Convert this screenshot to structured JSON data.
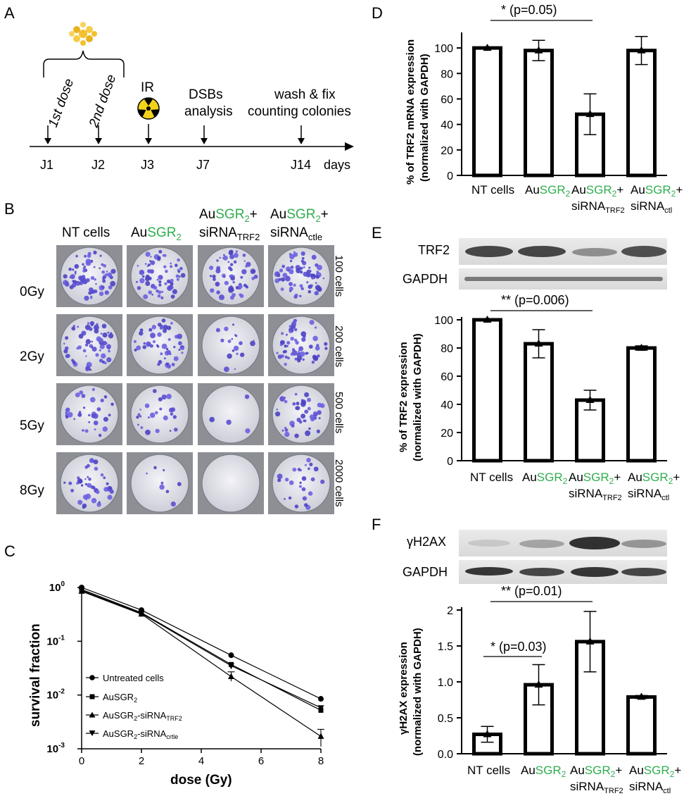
{
  "colors": {
    "accent_green": "#2fae4e",
    "dish_purple": "#5b4fd3",
    "ink": "#000000"
  },
  "panel_letters": {
    "a": "A",
    "b": "B",
    "c": "C",
    "d": "D",
    "e": "E",
    "f": "F"
  },
  "timeline": {
    "days": [
      "J1",
      "J2",
      "J3",
      "J7",
      "J14"
    ],
    "axis_unit": "days",
    "events": {
      "first_dose": "1st dose",
      "second_dose": "2nd dose",
      "ir": "IR",
      "dsb_line1": "DSBs",
      "dsb_line2": "analysis",
      "wash_line1": "wash & fix",
      "wash_line2": "counting colonies"
    }
  },
  "labels": {
    "nt": "NT cells",
    "au": "Au",
    "sgr": "SGR",
    "sub2": "2",
    "plus": "+",
    "sirna": "siRNA",
    "trf2_sub": "TRF2",
    "ctle_sub": "ctle",
    "ctl_sub": "ctl"
  },
  "colony_panel": {
    "doses": [
      "0Gy",
      "2Gy",
      "5Gy",
      "8Gy"
    ],
    "cell_counts": [
      "100 cells",
      "200 cells",
      "500 cells",
      "2000 cells"
    ]
  },
  "survival_legend": {
    "untreated": "Untreated cells",
    "prefix": "AuSGR",
    "sub2": "2",
    "trf2_suffix": "-siRNA",
    "trf2_sub": "TRF2",
    "crtle_sub": "crtle"
  },
  "blot_labels": {
    "trf2": "TRF2",
    "gapdh": "GAPDH",
    "h2ax": "γH2AX"
  },
  "chart_data": [
    {
      "id": "C",
      "type": "line",
      "xlabel": "dose (Gy)",
      "ylabel": "survival fraction",
      "yscale": "log",
      "ylim": [
        0.001,
        1
      ],
      "xlim": [
        0,
        8
      ],
      "x_ticks": [
        "0",
        "2",
        "4",
        "6",
        "8"
      ],
      "y_ticks": [
        {
          "base": "10",
          "exp": "0"
        },
        {
          "base": "10",
          "exp": "-1"
        },
        {
          "base": "10",
          "exp": "-2"
        },
        {
          "base": "10",
          "exp": "-3"
        }
      ],
      "x": [
        0,
        2,
        5,
        8
      ],
      "series": [
        {
          "name": "Untreated cells",
          "values": [
            1.0,
            0.38,
            0.055,
            0.0085
          ]
        },
        {
          "name": "AuSGR2",
          "values": [
            0.92,
            0.34,
            0.037,
            0.0052
          ]
        },
        {
          "name": "AuSGR2-siRNATRF2",
          "values": [
            0.85,
            0.32,
            0.022,
            0.0017
          ]
        },
        {
          "name": "AuSGR2-siRNAcrtle",
          "values": [
            0.88,
            0.33,
            0.035,
            0.0058
          ]
        }
      ]
    },
    {
      "id": "D",
      "type": "bar",
      "ylabel_line1": "% of TRF2 mRNA expression",
      "ylabel_line2": "(normalized with GAPDH)",
      "ylim": [
        0,
        110
      ],
      "y_ticks": [
        "0",
        "20",
        "40",
        "60",
        "80",
        "100"
      ],
      "values": [
        100,
        98,
        48,
        98
      ],
      "errors": [
        0.5,
        8,
        16,
        11
      ],
      "significance": "* (p=0.05)"
    },
    {
      "id": "E",
      "type": "bar",
      "ylabel_line1": "% of TRF2 expression",
      "ylabel_line2": "(normalized with GAPDH)",
      "ylim": [
        0,
        100
      ],
      "y_ticks": [
        "0",
        "20",
        "40",
        "60",
        "80",
        "100"
      ],
      "values": [
        100,
        83,
        43,
        80
      ],
      "errors": [
        0.5,
        10,
        7,
        1.5
      ],
      "significance": "** (p=0.006)"
    },
    {
      "id": "F",
      "type": "bar",
      "ylabel_line1": "γH2AX expression",
      "ylabel_line2": "(normalized with GAPDH)",
      "ylim": [
        0,
        2
      ],
      "y_ticks": [
        "0.0",
        "0.5",
        "1.0",
        "1.5",
        "2"
      ],
      "values": [
        0.27,
        0.96,
        1.56,
        0.79
      ],
      "errors": [
        0.11,
        0.28,
        0.42,
        0.02
      ],
      "significance_1": "** (p=0.01)",
      "significance_2": "* (p=0.03)"
    }
  ]
}
